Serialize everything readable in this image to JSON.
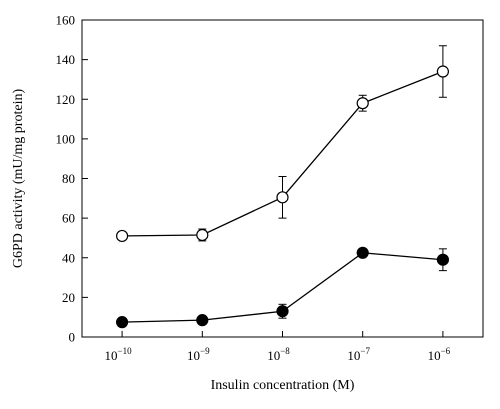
{
  "chart_data": {
    "type": "line",
    "title": "",
    "xlabel": "Insulin concentration (M)",
    "ylabel": "G6PD activity (mU/mg protein)",
    "x_scale": "log",
    "x": [
      1e-10,
      1e-09,
      1e-08,
      1e-07,
      1e-06
    ],
    "x_tick_labels": [
      {
        "base": "10",
        "exp": "−10"
      },
      {
        "base": "10",
        "exp": "−9"
      },
      {
        "base": "10",
        "exp": "−8"
      },
      {
        "base": "10",
        "exp": "−7"
      },
      {
        "base": "10",
        "exp": "−6"
      }
    ],
    "ylim": [
      0,
      160
    ],
    "y_ticks": [
      0,
      20,
      40,
      60,
      80,
      100,
      120,
      140,
      160
    ],
    "grid": false,
    "legend": "none",
    "series": [
      {
        "marker": "open-circle",
        "values": [
          51,
          51.5,
          70.5,
          118,
          134
        ],
        "errors": [
          1,
          3,
          10.5,
          4,
          13
        ]
      },
      {
        "marker": "filled-circle",
        "values": [
          7.5,
          8.5,
          13,
          42.5,
          39
        ],
        "errors": [
          0.8,
          1.5,
          3.5,
          1.5,
          5.5
        ]
      }
    ]
  }
}
